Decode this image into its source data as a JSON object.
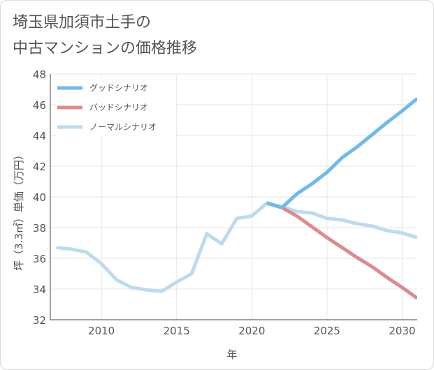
{
  "title_line1": "埼玉県加須市土手の",
  "title_line2": "中古マンションの価格推移",
  "chart_data": {
    "type": "line",
    "xlabel": "年",
    "ylabel": "坪（3.3㎡）単価（万円）",
    "xlim": [
      2006.6,
      2031
    ],
    "ylim": [
      32,
      48
    ],
    "x_ticks": [
      2010,
      2015,
      2020,
      2025,
      2030
    ],
    "y_ticks": [
      32,
      34,
      36,
      38,
      40,
      42,
      44,
      46,
      48
    ],
    "grid": true,
    "legend_position": "top-left",
    "series": [
      {
        "name": "グッドシナリオ",
        "color": "#72b9eb",
        "x": [
          2021,
          2022,
          2023,
          2024,
          2025,
          2026,
          2027,
          2028,
          2029,
          2030,
          2031
        ],
        "y": [
          39.6,
          39.3,
          40.2,
          40.85,
          41.6,
          42.55,
          43.25,
          44.05,
          44.85,
          45.6,
          46.4
        ]
      },
      {
        "name": "バッドシナリオ",
        "color": "#dd8a8f",
        "x": [
          2021,
          2022,
          2023,
          2024,
          2025,
          2026,
          2027,
          2028,
          2029,
          2030,
          2031
        ],
        "y": [
          39.6,
          39.3,
          38.75,
          38.05,
          37.35,
          36.7,
          36.05,
          35.45,
          34.75,
          34.1,
          33.4
        ]
      },
      {
        "name": "ノーマルシナリオ",
        "color": "#bcdcec",
        "x": [
          2007,
          2008,
          2009,
          2010,
          2011,
          2012,
          2013,
          2014,
          2015,
          2016,
          2017,
          2018,
          2019,
          2020,
          2021,
          2022,
          2023,
          2024,
          2025,
          2026,
          2027,
          2028,
          2029,
          2030,
          2031
        ],
        "y": [
          36.7,
          36.6,
          36.4,
          35.65,
          34.6,
          34.1,
          33.95,
          33.85,
          34.45,
          35.0,
          37.6,
          36.95,
          38.6,
          38.75,
          39.6,
          39.35,
          39.05,
          38.95,
          38.6,
          38.5,
          38.25,
          38.1,
          37.8,
          37.65,
          37.35
        ]
      }
    ]
  }
}
